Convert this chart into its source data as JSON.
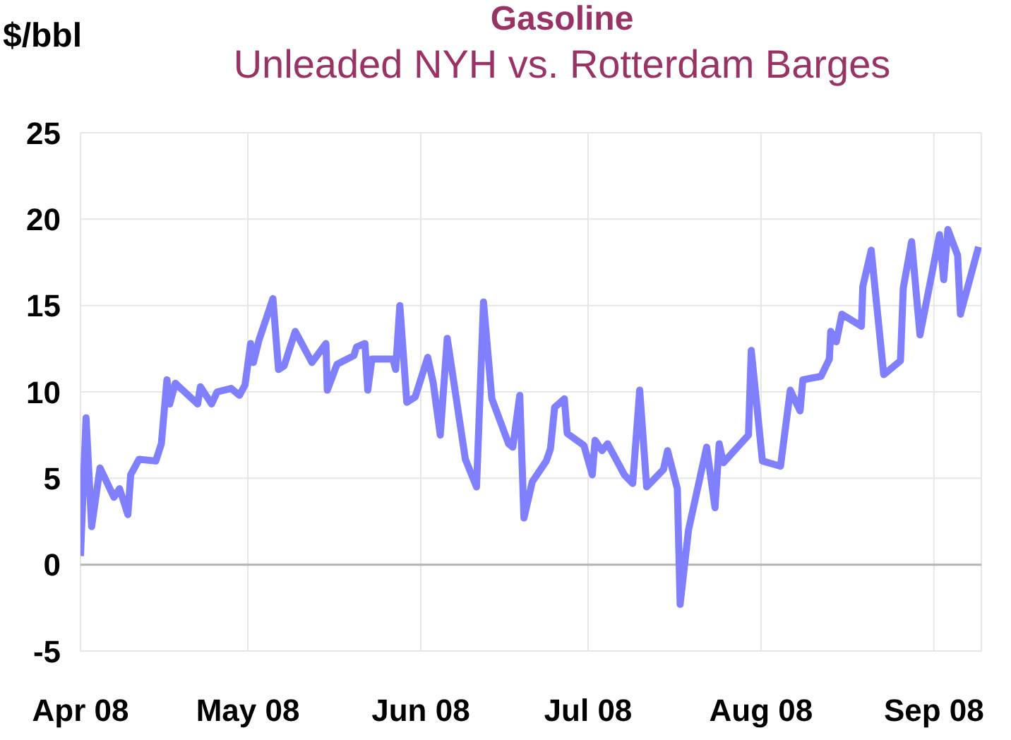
{
  "chart_data": {
    "type": "line",
    "title": "Gasoline",
    "subtitle": "Unleaded NYH vs. Rotterdam Barges",
    "ylabel": "$/bbl",
    "x": [
      "2008-04-01",
      "2008-04-02",
      "2008-04-03",
      "2008-04-04T12:00",
      "2008-04-07",
      "2008-04-08",
      "2008-04-09T12:00",
      "2008-04-10",
      "2008-04-11T12:00",
      "2008-04-14T12:00",
      "2008-04-15T12:00",
      "2008-04-16T12:00",
      "2008-04-17",
      "2008-04-18",
      "2008-04-22",
      "2008-04-22T12:00",
      "2008-04-24T12:00",
      "2008-04-25T12:00",
      "2008-04-28",
      "2008-04-29T12:00",
      "2008-04-30T12:00",
      "2008-05-01T12:00",
      "2008-05-02",
      "2008-05-03",
      "2008-05-05T12:00",
      "2008-05-06T12:00",
      "2008-05-07T12:00",
      "2008-05-09T12:00",
      "2008-05-12T12:00",
      "2008-05-15",
      "2008-05-15T06:00",
      "2008-05-17",
      "2008-05-20",
      "2008-05-20T12:00",
      "2008-05-22",
      "2008-05-22T12:00",
      "2008-05-23T06:00",
      "2008-05-27",
      "2008-05-27T12:00",
      "2008-05-28T06:00",
      "2008-05-29T12:00",
      "2008-05-31",
      "2008-06-02T06:00",
      "2008-06-03T06:00",
      "2008-06-04T12:00",
      "2008-06-05T18:00",
      "2008-06-09",
      "2008-06-11",
      "2008-06-12T06:00",
      "2008-06-13T18:00",
      "2008-06-16T18:00",
      "2008-06-17T12:00",
      "2008-06-18T18:00",
      "2008-06-19T12:00",
      "2008-06-21",
      "2008-06-23T12:00",
      "2008-06-24T06:00",
      "2008-06-25",
      "2008-06-26T18:00",
      "2008-06-27T06:00",
      "2008-06-30T06:00",
      "2008-07-01T18:00",
      "2008-07-02T06:00",
      "2008-07-03T12:00",
      "2008-07-04T12:00",
      "2008-07-07T12:00",
      "2008-07-09",
      "2008-07-10T06:00",
      "2008-07-11T12:00",
      "2008-07-14T12:00",
      "2008-07-15T06:00",
      "2008-07-17",
      "2008-07-17T12:00",
      "2008-07-19",
      "2008-07-22T06:00",
      "2008-07-23T18:00",
      "2008-07-24T12:00",
      "2008-07-25T06:00",
      "2008-07-29T18:00",
      "2008-07-30T06:00",
      "2008-08-01T06:00",
      "2008-08-04T12:00",
      "2008-08-06T06:00",
      "2008-08-08",
      "2008-08-08T12:00",
      "2008-08-11T18:00",
      "2008-08-13T06:00",
      "2008-08-13T12:00",
      "2008-08-14T12:00",
      "2008-08-15T12:00",
      "2008-08-19",
      "2008-08-19T06:00",
      "2008-08-20T18:00",
      "2008-08-23",
      "2008-08-26",
      "2008-08-26T12:00",
      "2008-08-28",
      "2008-08-29T12:00",
      "2008-09-02",
      "2008-09-02T18:00",
      "2008-09-03T12:00",
      "2008-09-05T06:00",
      "2008-09-05T18:00",
      "2008-09-09"
    ],
    "series": [
      {
        "color": "#8080ff",
        "values": [
          0.5,
          8.5,
          2.2,
          5.6,
          3.9,
          4.4,
          2.9,
          5.2,
          6.1,
          6.0,
          7.0,
          10.7,
          9.3,
          10.5,
          9.3,
          10.3,
          9.3,
          10.0,
          10.2,
          9.8,
          10.4,
          12.8,
          11.7,
          13.0,
          15.4,
          11.3,
          11.5,
          13.5,
          11.7,
          12.8,
          10.1,
          11.6,
          12.1,
          12.6,
          12.8,
          10.1,
          11.9,
          11.9,
          11.3,
          15.0,
          9.4,
          9.7,
          12.0,
          10.5,
          7.5,
          13.1,
          6.1,
          4.5,
          15.2,
          9.6,
          7.0,
          6.8,
          9.8,
          2.7,
          4.8,
          6.0,
          6.7,
          9.1,
          9.6,
          7.6,
          6.9,
          5.2,
          7.2,
          6.6,
          7.0,
          5.2,
          4.7,
          10.1,
          4.5,
          5.5,
          6.6,
          4.4,
          -2.3,
          2.0,
          6.8,
          3.3,
          7.0,
          5.9,
          7.5,
          12.4,
          6.0,
          5.7,
          10.1,
          8.9,
          10.7,
          10.9,
          11.9,
          13.5,
          12.9,
          14.5,
          13.8,
          16.1,
          18.2,
          11.0,
          11.8,
          16.0,
          18.7,
          13.3,
          19.1,
          16.5,
          19.4,
          17.9,
          14.5,
          18.4
        ]
      }
    ],
    "xlim": [
      "2008-04-01",
      "2008-09-09T12:00"
    ],
    "xticks": [
      {
        "value": "2008-04-01",
        "label": "Apr 08"
      },
      {
        "value": "2008-05-01",
        "label": "May 08"
      },
      {
        "value": "2008-06-01",
        "label": "Jun 08"
      },
      {
        "value": "2008-07-01",
        "label": "Jul 08"
      },
      {
        "value": "2008-08-01",
        "label": "Aug 08"
      },
      {
        "value": "2008-09-01",
        "label": "Sep 08"
      }
    ],
    "ylim": [
      -5,
      25
    ],
    "yticks": [
      -5,
      0,
      5,
      10,
      15,
      20,
      25
    ],
    "grid": true,
    "marker": "none",
    "line_style": "solid"
  }
}
